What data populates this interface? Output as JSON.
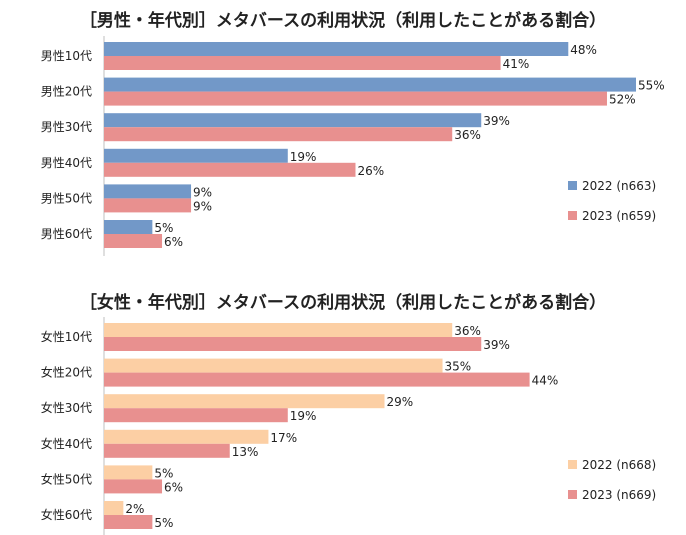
{
  "chart_data": [
    {
      "type": "bar",
      "orientation": "horizontal",
      "title": "［男性・年代別］メタバースの利用状況（利用したことがある割合）",
      "categories": [
        "男性10代",
        "男性20代",
        "男性30代",
        "男性40代",
        "男性50代",
        "男性60代"
      ],
      "series": [
        {
          "name": "2022 (n663)",
          "color": "#7298c8",
          "values": [
            48,
            55,
            39,
            19,
            9,
            5
          ]
        },
        {
          "name": "2023 (n659)",
          "color": "#e8908f",
          "values": [
            41,
            52,
            36,
            26,
            9,
            6
          ]
        }
      ],
      "value_suffix": "%",
      "xlim": [
        0,
        55
      ],
      "grid": false,
      "legend": "right"
    },
    {
      "type": "bar",
      "orientation": "horizontal",
      "title": "［女性・年代別］メタバースの利用状況（利用したことがある割合）",
      "categories": [
        "女性10代",
        "女性20代",
        "女性30代",
        "女性40代",
        "女性50代",
        "女性60代"
      ],
      "series": [
        {
          "name": "2022 (n668)",
          "color": "#fccfa4",
          "values": [
            36,
            35,
            29,
            17,
            5,
            2
          ]
        },
        {
          "name": "2023 (n669)",
          "color": "#e8908f",
          "values": [
            39,
            44,
            19,
            13,
            6,
            5
          ]
        }
      ],
      "value_suffix": "%",
      "xlim": [
        0,
        55
      ],
      "grid": false,
      "legend": "right"
    }
  ]
}
